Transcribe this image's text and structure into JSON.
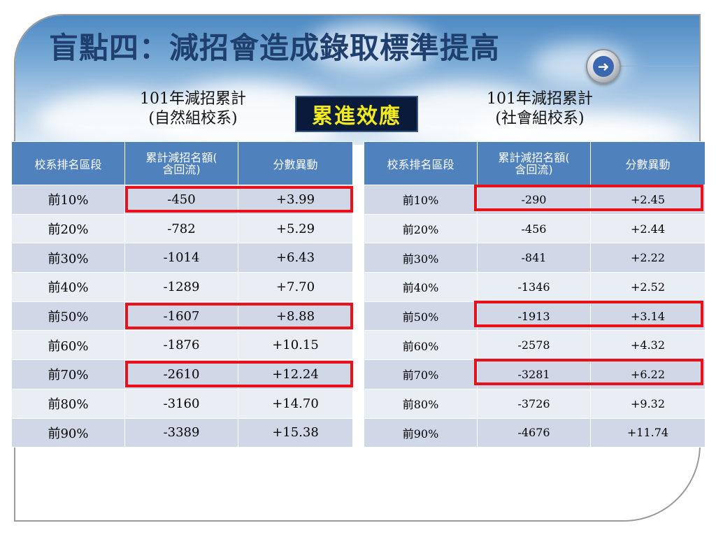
{
  "slide": {
    "title": "盲點四：減招會造成錄取標準提高",
    "badge": "累進效應"
  },
  "left_table": {
    "heading_line1": "101年減招累計",
    "heading_line2": "(自然組校系)",
    "columns": [
      "校系排名區段",
      "累計減招名額(\n含回流)",
      "分數異動"
    ],
    "rows": [
      [
        "前10%",
        "-450",
        "+3.99"
      ],
      [
        "前20%",
        "-782",
        "+5.29"
      ],
      [
        "前30%",
        "-1014",
        "+6.43"
      ],
      [
        "前40%",
        "-1289",
        "+7.70"
      ],
      [
        "前50%",
        "-1607",
        "+8.88"
      ],
      [
        "前60%",
        "-1876",
        "+10.15"
      ],
      [
        "前70%",
        "-2610",
        "+12.24"
      ],
      [
        "前80%",
        "-3160",
        "+14.70"
      ],
      [
        "前90%",
        "-3389",
        "+15.38"
      ]
    ]
  },
  "right_table": {
    "heading_line1": "101年減招累計",
    "heading_line2": "(社會組校系)",
    "columns": [
      "校系排名區段",
      "累計減招名額(\n含回流)",
      "分數異動"
    ],
    "rows": [
      [
        "前10%",
        "-290",
        "+2.45"
      ],
      [
        "前20%",
        "-456",
        "+2.44"
      ],
      [
        "前30%",
        "-841",
        "+2.22"
      ],
      [
        "前40%",
        "-1346",
        "+2.52"
      ],
      [
        "前50%",
        "-1913",
        "+3.14"
      ],
      [
        "前60%",
        "-2578",
        "+4.32"
      ],
      [
        "前70%",
        "-3281",
        "+6.22"
      ],
      [
        "前80%",
        "-3726",
        "+9.32"
      ],
      [
        "前90%",
        "-4676",
        "+11.74"
      ]
    ]
  },
  "highlighted_rows": [
    "前10%",
    "前50%",
    "前70%"
  ],
  "colors": {
    "header_blue": "#4f81bd",
    "row_dark": "#d0d8e8",
    "row_light": "#e9edf4",
    "highlight_red": "#e8101a",
    "badge_text": "#f2ea1c",
    "badge_bg": "#0a1a3a",
    "title": "#1f3f6e"
  },
  "icons": {
    "next": "right-arrow-circle-icon"
  }
}
